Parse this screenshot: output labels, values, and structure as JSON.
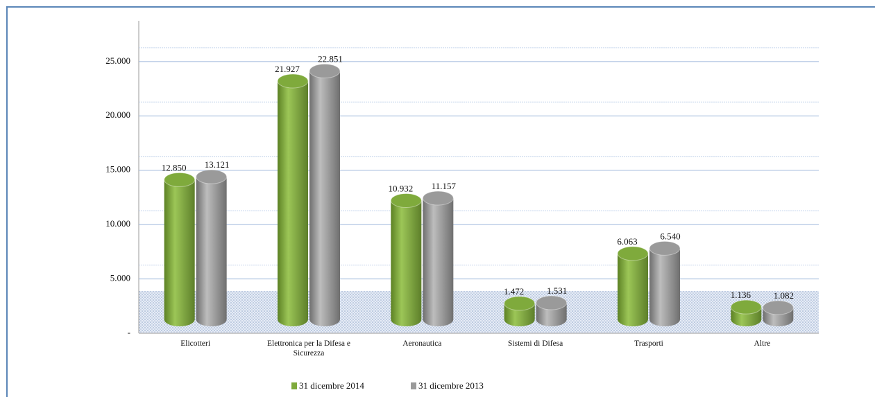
{
  "chart_data": {
    "type": "bar",
    "categories": [
      "Elicotteri",
      "Elettronica per la Difesa e Sicurezza",
      "Aeronautica",
      "Sistemi di Difesa",
      "Trasporti",
      "Altre"
    ],
    "series": [
      {
        "name": "31 dicembre 2014",
        "color": "#7faa3c",
        "values": [
          12850,
          21927,
          10932,
          1472,
          6063,
          1136
        ],
        "value_labels": [
          "12.850",
          "21.927",
          "10.932",
          "1.472",
          "6.063",
          "1.136"
        ]
      },
      {
        "name": "31 dicembre 2013",
        "color": "#9a9a9a",
        "values": [
          13121,
          22851,
          11157,
          1531,
          6540,
          1082
        ],
        "value_labels": [
          "13.121",
          "22.851",
          "11.157",
          "1.531",
          "6.540",
          "1.082"
        ]
      }
    ],
    "ylim": [
      0,
      28750
    ],
    "yticks": [
      {
        "value": 0,
        "label": "-"
      },
      {
        "value": 5000,
        "label": "5.000"
      },
      {
        "value": 10000,
        "label": "10.000"
      },
      {
        "value": 15000,
        "label": "15.000"
      },
      {
        "value": 20000,
        "label": "20.000"
      },
      {
        "value": 25000,
        "label": "25.000"
      }
    ],
    "grid": true,
    "legend": "bottom"
  }
}
